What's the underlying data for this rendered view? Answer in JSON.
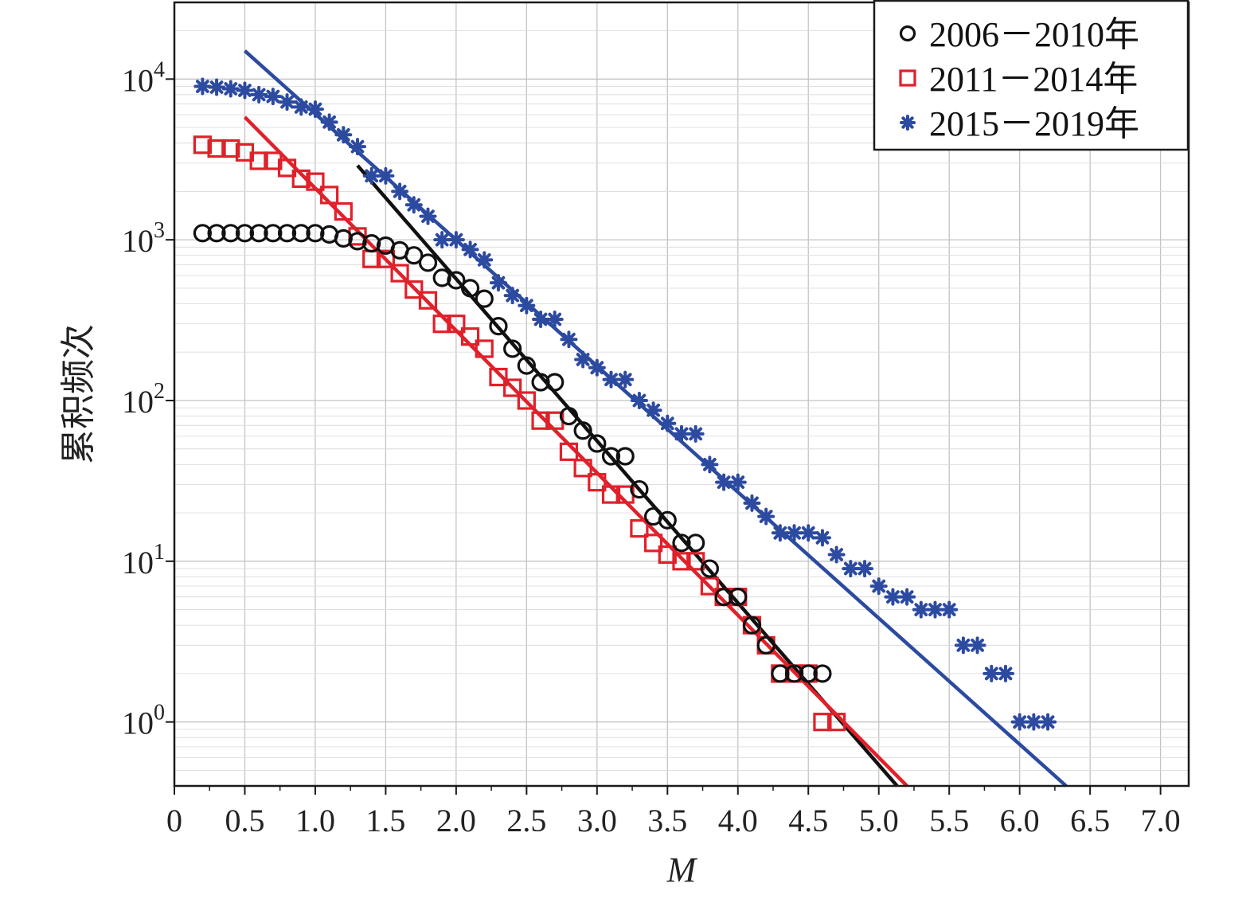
{
  "chart_data": {
    "type": "scatter",
    "xlabel": "M",
    "ylabel": "累积频次",
    "xlim": [
      0,
      7.2
    ],
    "ylim": [
      0.4,
      30000
    ],
    "y_scale": "log",
    "x_ticks": [
      0,
      0.5,
      1.0,
      1.5,
      2.0,
      2.5,
      3.0,
      3.5,
      4.0,
      4.5,
      5.0,
      5.5,
      6.0,
      6.5,
      7.0
    ],
    "x_tick_labels": [
      "0",
      "0.5",
      "1.0",
      "1.5",
      "2.0",
      "2.5",
      "3.0",
      "3.5",
      "4.0",
      "4.5",
      "5.0",
      "5.5",
      "6.0",
      "6.5",
      "7.0"
    ],
    "y_ticks": [
      1,
      10,
      100,
      1000,
      10000
    ],
    "y_tick_labels": [
      {
        "base": "10",
        "exp": "0"
      },
      {
        "base": "10",
        "exp": "1"
      },
      {
        "base": "10",
        "exp": "2"
      },
      {
        "base": "10",
        "exp": "3"
      },
      {
        "base": "10",
        "exp": "4"
      }
    ],
    "grid": true,
    "legend_position": "top-right",
    "series": [
      {
        "name": "2006－2010年",
        "marker": "circle",
        "color": "#111111",
        "x": [
          0.2,
          0.3,
          0.4,
          0.5,
          0.6,
          0.7,
          0.8,
          0.9,
          1.0,
          1.1,
          1.2,
          1.3,
          1.4,
          1.5,
          1.6,
          1.7,
          1.8,
          1.9,
          2.0,
          2.1,
          2.2,
          2.3,
          2.4,
          2.5,
          2.6,
          2.7,
          2.8,
          2.9,
          3.0,
          3.1,
          3.2,
          3.3,
          3.4,
          3.5,
          3.6,
          3.7,
          3.8,
          3.9,
          4.0,
          4.1,
          4.2,
          4.3,
          4.4,
          4.5,
          4.6
        ],
        "y": [
          1100,
          1100,
          1100,
          1100,
          1100,
          1100,
          1100,
          1100,
          1100,
          1080,
          1020,
          980,
          950,
          920,
          860,
          800,
          720,
          580,
          560,
          500,
          430,
          290,
          210,
          165,
          130,
          130,
          80,
          65,
          54,
          45,
          45,
          28,
          19,
          18,
          13,
          13,
          9,
          6,
          6,
          4,
          3,
          2,
          2,
          2,
          2
        ]
      },
      {
        "name": "2011－2014年",
        "marker": "square",
        "color": "#e0202a",
        "x": [
          0.2,
          0.3,
          0.4,
          0.5,
          0.6,
          0.7,
          0.8,
          0.9,
          1.0,
          1.1,
          1.2,
          1.3,
          1.4,
          1.5,
          1.6,
          1.7,
          1.8,
          1.9,
          2.0,
          2.1,
          2.2,
          2.3,
          2.4,
          2.5,
          2.6,
          2.7,
          2.8,
          2.9,
          3.0,
          3.1,
          3.2,
          3.3,
          3.4,
          3.5,
          3.6,
          3.7,
          3.8,
          3.9,
          4.0,
          4.1,
          4.2,
          4.3,
          4.4,
          4.5,
          4.6,
          4.7
        ],
        "y": [
          3900,
          3700,
          3700,
          3500,
          3100,
          3100,
          2800,
          2400,
          2300,
          1900,
          1500,
          1050,
          760,
          760,
          620,
          490,
          420,
          300,
          300,
          250,
          210,
          140,
          120,
          100,
          75,
          75,
          48,
          38,
          31,
          26,
          26,
          16,
          13,
          11,
          10,
          10,
          7,
          6,
          6,
          4,
          3,
          2,
          2,
          2,
          1,
          1
        ]
      },
      {
        "name": "2015－2019年",
        "marker": "asterisk",
        "color": "#2c4aa0",
        "x": [
          0.2,
          0.3,
          0.4,
          0.5,
          0.6,
          0.7,
          0.8,
          0.9,
          1.0,
          1.1,
          1.2,
          1.3,
          1.4,
          1.5,
          1.6,
          1.7,
          1.8,
          1.9,
          2.0,
          2.1,
          2.2,
          2.3,
          2.4,
          2.5,
          2.6,
          2.7,
          2.8,
          2.9,
          3.0,
          3.1,
          3.2,
          3.3,
          3.4,
          3.5,
          3.6,
          3.7,
          3.8,
          3.9,
          4.0,
          4.1,
          4.2,
          4.3,
          4.4,
          4.5,
          4.6,
          4.7,
          4.8,
          4.9,
          5.0,
          5.1,
          5.2,
          5.3,
          5.4,
          5.5,
          5.6,
          5.7,
          5.8,
          5.9,
          6.0,
          6.1,
          6.2
        ],
        "y": [
          9000,
          8900,
          8700,
          8500,
          8000,
          7800,
          7200,
          6700,
          6500,
          5400,
          4500,
          3800,
          2500,
          2500,
          2000,
          1650,
          1400,
          1000,
          1000,
          870,
          750,
          540,
          450,
          390,
          320,
          320,
          240,
          180,
          160,
          135,
          135,
          100,
          87,
          72,
          62,
          62,
          40,
          31,
          31,
          23,
          19,
          15,
          15,
          15,
          14,
          11,
          9,
          9,
          7,
          6,
          6,
          5,
          5,
          5,
          3,
          3,
          2,
          2,
          1,
          1,
          1
        ]
      }
    ],
    "fit_lines": [
      {
        "series": "2006－2010年",
        "color": "#111111",
        "x": [
          1.3,
          5.13
        ],
        "y": [
          2900,
          0.4
        ]
      },
      {
        "series": "2011－2014年",
        "color": "#e0202a",
        "x": [
          0.5,
          5.2
        ],
        "y": [
          5800,
          0.4
        ]
      },
      {
        "series": "2015－2019年",
        "color": "#2c4aa0",
        "x": [
          0.5,
          6.33
        ],
        "y": [
          15000,
          0.4
        ]
      }
    ]
  }
}
